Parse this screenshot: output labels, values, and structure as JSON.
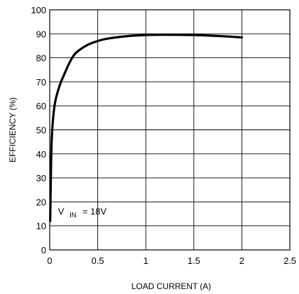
{
  "chart_data": {
    "type": "line",
    "title": "",
    "xlabel": "LOAD CURRENT (A)",
    "ylabel": "EFFICIENCY (%)",
    "xlim": [
      0,
      2.5
    ],
    "ylim": [
      0,
      100
    ],
    "xticks": [
      0,
      0.5,
      1,
      1.5,
      2,
      2.5
    ],
    "xtick_labels": [
      "0",
      "0.5",
      "1",
      "1.5",
      "2",
      "2.5"
    ],
    "yticks": [
      0,
      10,
      20,
      30,
      40,
      50,
      60,
      70,
      80,
      90,
      100
    ],
    "ytick_labels": [
      "0",
      "10",
      "20",
      "30",
      "40",
      "50",
      "60",
      "70",
      "80",
      "90",
      "100"
    ],
    "grid": true,
    "series": [
      {
        "color": "#000000",
        "x": [
          0.005,
          0.02,
          0.05,
          0.1,
          0.15,
          0.2,
          0.25,
          0.3,
          0.4,
          0.5,
          0.6,
          0.8,
          1.0,
          1.2,
          1.5,
          1.8,
          2.0
        ],
        "y": [
          12,
          45,
          60,
          68,
          73,
          77.5,
          81,
          83,
          85.5,
          87,
          88,
          89,
          89.5,
          89.6,
          89.5,
          89,
          88.5
        ]
      }
    ],
    "annotation": {
      "main": "V",
      "subscript": "IN",
      "suffix": "= 18V",
      "x": 0.05,
      "y": 17
    }
  }
}
